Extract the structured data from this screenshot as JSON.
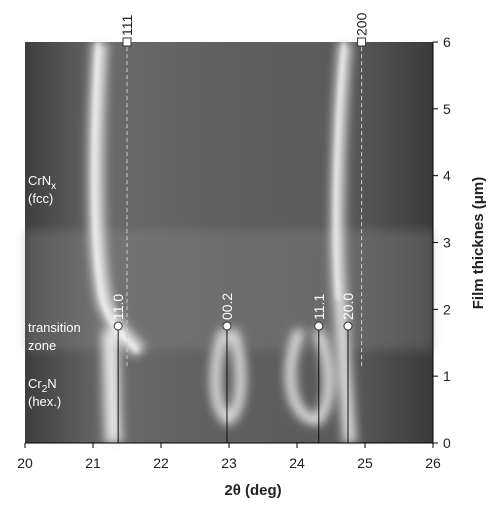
{
  "chart_data": {
    "type": "xrd-map",
    "xlabel": "2θ (deg)",
    "ylabel": "Film thicknes (μm)",
    "xlim": [
      20,
      26
    ],
    "ylim": [
      0,
      6
    ],
    "xticks": [
      20,
      21,
      22,
      23,
      24,
      25,
      26
    ],
    "yticks": [
      0,
      1,
      2,
      3,
      4,
      5,
      6
    ],
    "reference_peaks": [
      {
        "label": "111",
        "x": 21.5,
        "y_start": 1.15,
        "y_end": 6,
        "style": "dashed",
        "marker": "square"
      },
      {
        "label": "200",
        "x": 24.95,
        "y_start": 1.15,
        "y_end": 6,
        "style": "dashed",
        "marker": "square"
      },
      {
        "label": "11.0",
        "x": 21.37,
        "y_start": 0,
        "y_end": 1.75,
        "style": "solid",
        "marker": "circle"
      },
      {
        "label": "00.2",
        "x": 22.97,
        "y_start": 0,
        "y_end": 1.75,
        "style": "solid",
        "marker": "circle"
      },
      {
        "label": "11.1",
        "x": 24.32,
        "y_start": 0,
        "y_end": 1.75,
        "style": "solid",
        "marker": "circle"
      },
      {
        "label": "20.0",
        "x": 24.75,
        "y_start": 0,
        "y_end": 1.75,
        "style": "solid",
        "marker": "circle"
      }
    ],
    "regions": [
      {
        "main": "CrN",
        "sub": "x",
        "line2": "(fcc)"
      },
      {
        "main": "transition",
        "line2": "zone"
      },
      {
        "main": "Cr",
        "sub": "2",
        "tail": "N",
        "line2": "(hex.)"
      }
    ]
  }
}
